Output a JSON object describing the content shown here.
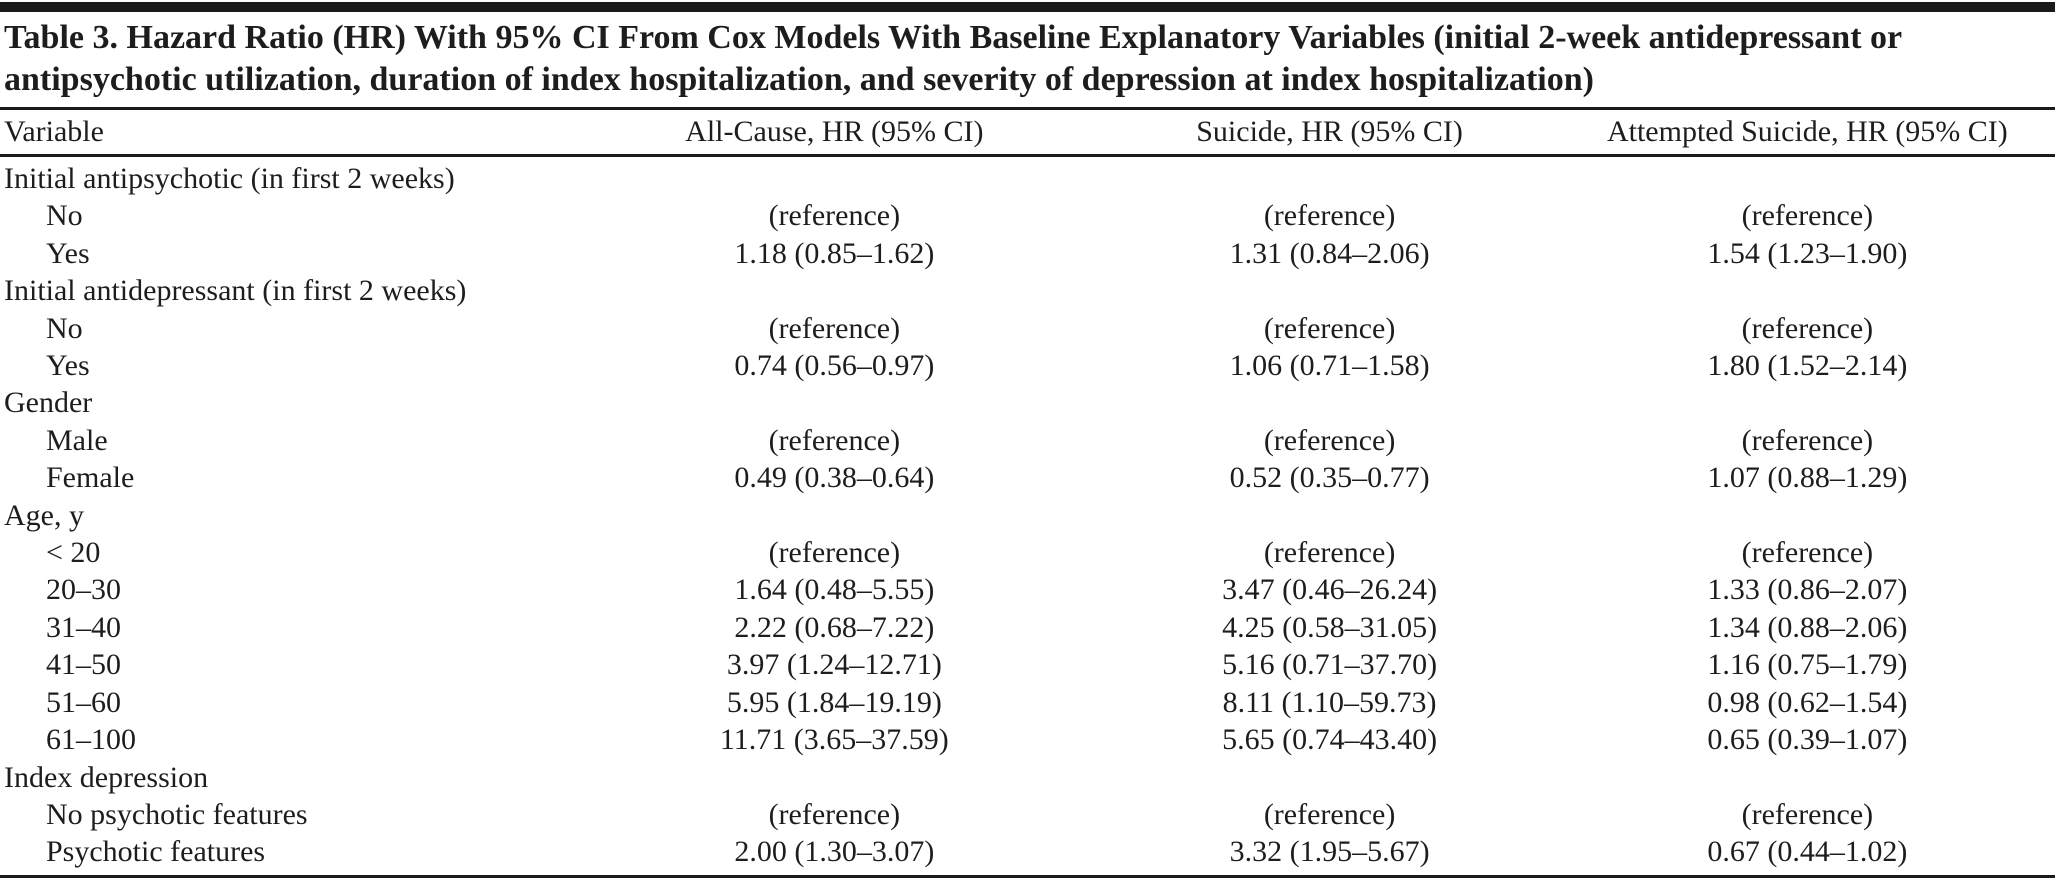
{
  "colors": {
    "background": "#ffffff",
    "text": "#1d1d1d",
    "rule": "#1a1a1a"
  },
  "table": {
    "title": "Table 3. Hazard Ratio (HR) With 95% CI From Cox Models With Baseline Explanatory Variables (initial 2-week antidepressant or antipsychotic utilization, duration of index hospitalization, and severity of depression at index hospitalization)",
    "columns": [
      "Variable",
      "All-Cause, HR (95% CI)",
      "Suicide, HR (95% CI)",
      "Attempted Suicide, HR (95% CI)"
    ],
    "rows": [
      {
        "label": "Initial antipsychotic (in first 2 weeks)",
        "indent": 0,
        "values": [
          "",
          "",
          ""
        ]
      },
      {
        "label": "No",
        "indent": 1,
        "values": [
          "(reference)",
          "(reference)",
          "(reference)"
        ]
      },
      {
        "label": "Yes",
        "indent": 1,
        "values": [
          "1.18 (0.85–1.62)",
          "1.31 (0.84–2.06)",
          "1.54 (1.23–1.90)"
        ]
      },
      {
        "label": "Initial antidepressant (in first 2 weeks)",
        "indent": 0,
        "values": [
          "",
          "",
          ""
        ]
      },
      {
        "label": "No",
        "indent": 1,
        "values": [
          "(reference)",
          "(reference)",
          "(reference)"
        ]
      },
      {
        "label": "Yes",
        "indent": 1,
        "values": [
          "0.74 (0.56–0.97)",
          "1.06 (0.71–1.58)",
          "1.80 (1.52–2.14)"
        ]
      },
      {
        "label": "Gender",
        "indent": 0,
        "values": [
          "",
          "",
          ""
        ]
      },
      {
        "label": "Male",
        "indent": 1,
        "values": [
          "(reference)",
          "(reference)",
          "(reference)"
        ]
      },
      {
        "label": "Female",
        "indent": 1,
        "values": [
          "0.49 (0.38–0.64)",
          "0.52 (0.35–0.77)",
          "1.07 (0.88–1.29)"
        ]
      },
      {
        "label": "Age, y",
        "indent": 0,
        "values": [
          "",
          "",
          ""
        ]
      },
      {
        "label": "< 20",
        "indent": 1,
        "values": [
          "(reference)",
          "(reference)",
          "(reference)"
        ]
      },
      {
        "label": "20–30",
        "indent": 1,
        "values": [
          "1.64 (0.48–5.55)",
          "3.47 (0.46–26.24)",
          "1.33 (0.86–2.07)"
        ]
      },
      {
        "label": "31–40",
        "indent": 1,
        "values": [
          "2.22 (0.68–7.22)",
          "4.25 (0.58–31.05)",
          "1.34 (0.88–2.06)"
        ]
      },
      {
        "label": "41–50",
        "indent": 1,
        "values": [
          "3.97 (1.24–12.71)",
          "5.16 (0.71–37.70)",
          "1.16 (0.75–1.79)"
        ]
      },
      {
        "label": "51–60",
        "indent": 1,
        "values": [
          "5.95 (1.84–19.19)",
          "8.11 (1.10–59.73)",
          "0.98 (0.62–1.54)"
        ]
      },
      {
        "label": "61–100",
        "indent": 1,
        "values": [
          "11.71 (3.65–37.59)",
          "5.65 (0.74–43.40)",
          "0.65 (0.39–1.07)"
        ]
      },
      {
        "label": "Index depression",
        "indent": 0,
        "values": [
          "",
          "",
          ""
        ]
      },
      {
        "label": "No psychotic features",
        "indent": 1,
        "values": [
          "(reference)",
          "(reference)",
          "(reference)"
        ]
      },
      {
        "label": "Psychotic features",
        "indent": 1,
        "values": [
          "2.00 (1.30–3.07)",
          "3.32 (1.95–5.67)",
          "0.67 (0.44–1.02)"
        ]
      }
    ]
  }
}
